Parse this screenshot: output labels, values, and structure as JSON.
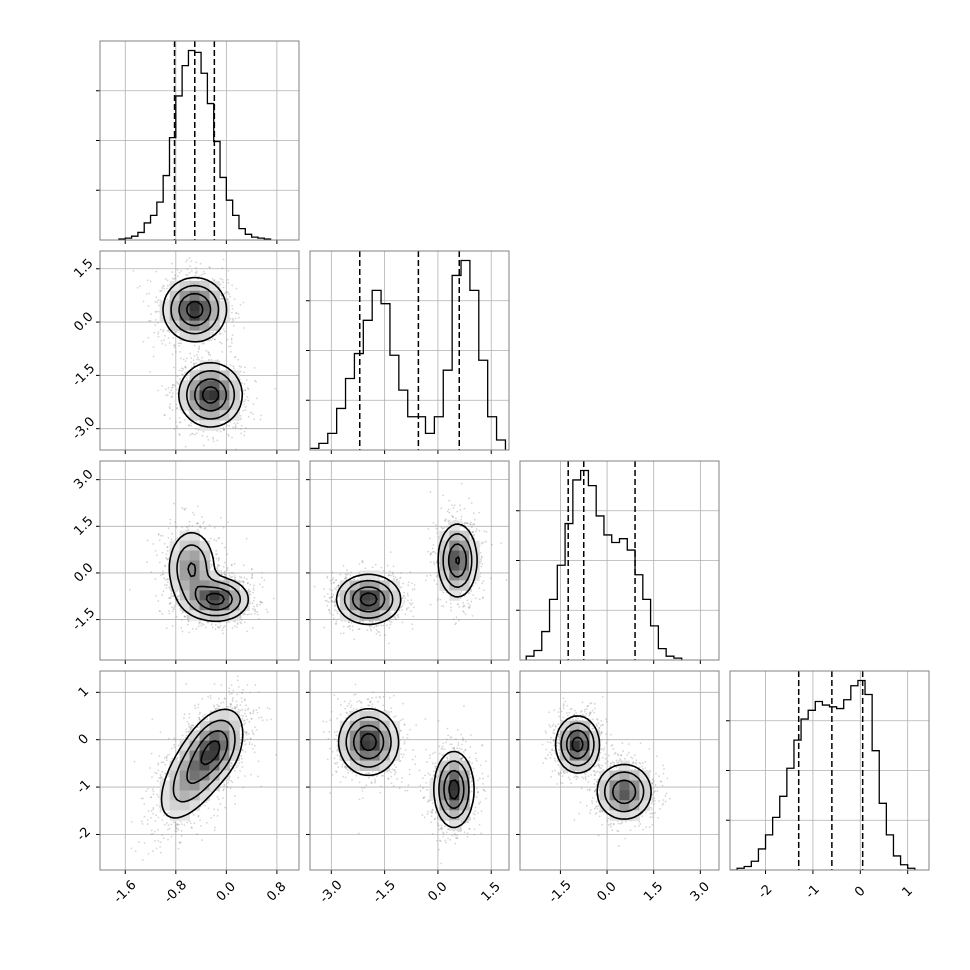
{
  "chart_data": {
    "type": "corner",
    "title": "",
    "n_params": 4,
    "ranges": [
      [
        -2.0,
        1.15
      ],
      [
        -3.6,
        2.0
      ],
      [
        -2.8,
        3.6
      ],
      [
        -2.75,
        1.45
      ]
    ],
    "ticks": [
      {
        "values": [
          -1.6,
          -0.8,
          0.0,
          0.8
        ],
        "labels": [
          "-1.6",
          "-0.8",
          "0.0",
          "0.8"
        ]
      },
      {
        "values": [
          -3.0,
          -1.5,
          0.0,
          1.5
        ],
        "labels": [
          "-3.0",
          "-1.5",
          "0.0",
          "1.5"
        ]
      },
      {
        "values": [
          -1.5,
          0.0,
          1.5,
          3.0
        ],
        "labels": [
          "-1.5",
          "0.0",
          "1.5",
          "3.0"
        ]
      },
      {
        "values": [
          -2,
          -1,
          0,
          1
        ],
        "labels": [
          "-2",
          "-1",
          "0",
          "1"
        ]
      }
    ],
    "histograms": [
      {
        "bin_edges": [
          -1.7,
          -1.6,
          -1.5,
          -1.4,
          -1.3,
          -1.2,
          -1.1,
          -1.0,
          -0.9,
          -0.8,
          -0.7,
          -0.6,
          -0.5,
          -0.4,
          -0.3,
          -0.2,
          -0.1,
          0.0,
          0.1,
          0.2,
          0.3,
          0.4,
          0.5,
          0.6,
          0.7
        ],
        "counts": [
          0.005,
          0.01,
          0.02,
          0.04,
          0.09,
          0.13,
          0.2,
          0.34,
          0.54,
          0.76,
          0.92,
          1.0,
          0.99,
          0.88,
          0.72,
          0.52,
          0.33,
          0.21,
          0.13,
          0.06,
          0.03,
          0.015,
          0.01,
          0.005
        ],
        "quantiles": [
          -0.82,
          -0.5,
          -0.19
        ]
      },
      {
        "bin_edges": [
          -3.6,
          -3.35,
          -3.1,
          -2.85,
          -2.6,
          -2.35,
          -2.1,
          -1.85,
          -1.6,
          -1.35,
          -1.1,
          -0.85,
          -0.6,
          -0.35,
          -0.1,
          0.15,
          0.4,
          0.65,
          0.9,
          1.15,
          1.4,
          1.65,
          1.9
        ],
        "counts": [
          0.01,
          0.04,
          0.1,
          0.25,
          0.43,
          0.58,
          0.78,
          0.96,
          0.88,
          0.57,
          0.36,
          0.2,
          0.2,
          0.1,
          0.2,
          0.48,
          1.05,
          1.14,
          0.96,
          0.54,
          0.2,
          0.06
        ],
        "quantiles": [
          -2.2,
          -0.55,
          0.6
        ]
      },
      {
        "bin_edges": [
          -2.6,
          -2.35,
          -2.1,
          -1.85,
          -1.6,
          -1.35,
          -1.1,
          -0.85,
          -0.6,
          -0.35,
          -0.1,
          0.15,
          0.4,
          0.65,
          0.9,
          1.15,
          1.4,
          1.65,
          1.9,
          2.15,
          2.4
        ],
        "counts": [
          0.02,
          0.05,
          0.15,
          0.32,
          0.5,
          0.72,
          0.95,
          1.0,
          0.92,
          0.76,
          0.66,
          0.62,
          0.64,
          0.58,
          0.45,
          0.32,
          0.18,
          0.06,
          0.02,
          0.01
        ],
        "quantiles": [
          -1.25,
          -0.75,
          0.9
        ]
      },
      {
        "bin_edges": [
          -2.75,
          -2.6,
          -2.45,
          -2.3,
          -2.15,
          -2.0,
          -1.85,
          -1.7,
          -1.55,
          -1.4,
          -1.25,
          -1.1,
          -0.95,
          -0.8,
          -0.65,
          -0.5,
          -0.35,
          -0.2,
          -0.05,
          0.1,
          0.25,
          0.4,
          0.55,
          0.7,
          0.85,
          1.0,
          1.15
        ],
        "counts": [
          0.0,
          0.01,
          0.02,
          0.05,
          0.12,
          0.2,
          0.3,
          0.42,
          0.58,
          0.74,
          0.86,
          0.91,
          0.96,
          0.94,
          0.93,
          0.92,
          0.97,
          1.05,
          1.08,
          1.0,
          0.68,
          0.38,
          0.2,
          0.08,
          0.03,
          0.01
        ],
        "quantiles": [
          -1.3,
          -0.6,
          0.05
        ]
      }
    ],
    "modes_2d": [
      {
        "row": 1,
        "col": 0,
        "modes": [
          {
            "mx": -0.5,
            "my": 0.35,
            "sx": 0.25,
            "sy": 0.45,
            "rho": 0.0,
            "w": 1.0
          },
          {
            "mx": -0.25,
            "my": -2.05,
            "sx": 0.25,
            "sy": 0.45,
            "rho": 0.0,
            "w": 1.0
          }
        ]
      },
      {
        "row": 2,
        "col": 0,
        "modes": [
          {
            "mx": -0.15,
            "my": -0.85,
            "sx": 0.25,
            "sy": 0.35,
            "rho": 0.0,
            "w": 1.0
          },
          {
            "mx": -0.55,
            "my": 0.15,
            "sx": 0.2,
            "sy": 0.65,
            "rho": 0.0,
            "w": 0.65
          }
        ]
      },
      {
        "row": 2,
        "col": 1,
        "modes": [
          {
            "mx": -1.95,
            "my": -0.85,
            "sx": 0.45,
            "sy": 0.4,
            "rho": 0.0,
            "w": 1.0
          },
          {
            "mx": 0.55,
            "my": 0.4,
            "sx": 0.28,
            "sy": 0.6,
            "rho": 0.0,
            "w": 0.9
          }
        ]
      },
      {
        "row": 3,
        "col": 0,
        "modes": [
          {
            "mx": -0.42,
            "my": -0.55,
            "sx": 0.33,
            "sy": 0.6,
            "rho": 0.65,
            "w": 1.0
          },
          {
            "mx": -0.15,
            "my": -0.15,
            "sx": 0.2,
            "sy": 0.35,
            "rho": 0.2,
            "w": 0.6
          }
        ]
      },
      {
        "row": 3,
        "col": 1,
        "modes": [
          {
            "mx": -1.95,
            "my": -0.05,
            "sx": 0.42,
            "sy": 0.35,
            "rho": 0.0,
            "w": 1.0
          },
          {
            "mx": 0.45,
            "my": -1.05,
            "sx": 0.28,
            "sy": 0.4,
            "rho": 0.0,
            "w": 1.0
          }
        ]
      },
      {
        "row": 3,
        "col": 2,
        "modes": [
          {
            "mx": -0.95,
            "my": -0.1,
            "sx": 0.35,
            "sy": 0.3,
            "rho": 0.0,
            "w": 1.0
          },
          {
            "mx": 0.55,
            "my": -1.1,
            "sx": 0.45,
            "sy": 0.3,
            "rho": 0.0,
            "w": 0.85
          }
        ]
      }
    ],
    "contour_levels": [
      0.135,
      0.325,
      0.61,
      0.88
    ],
    "grid": true,
    "colors": {
      "line": "#000000",
      "grid": "#b0b0b0",
      "scatter": "#8a8a8a",
      "frame": "#808080"
    }
  }
}
